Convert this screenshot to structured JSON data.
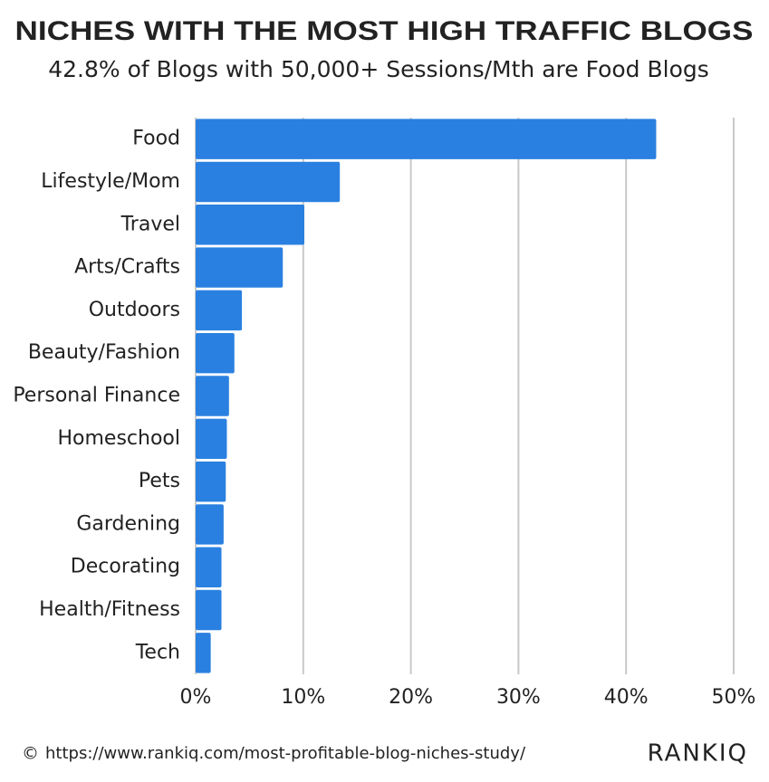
{
  "chart_data": {
    "type": "bar",
    "orientation": "horizontal",
    "title": "NICHES WITH THE MOST HIGH TRAFFIC BLOGS",
    "subtitle": "42.8% of Blogs with 50,000+ Sessions/Mth are Food Blogs",
    "categories": [
      "Food",
      "Lifestyle/Mom",
      "Travel",
      "Arts/Crafts",
      "Outdoors",
      "Beauty/Fashion",
      "Personal Finance",
      "Homeschool",
      "Pets",
      "Gardening",
      "Decorating",
      "Health/Fitness",
      "Tech"
    ],
    "values": [
      42.8,
      13.4,
      10.1,
      8.1,
      4.3,
      3.6,
      3.1,
      2.9,
      2.8,
      2.6,
      2.4,
      2.4,
      1.4
    ],
    "color": "#2a80e0",
    "xlim": [
      0,
      50
    ],
    "xticks": [
      {
        "value": 0,
        "label": "0%"
      },
      {
        "value": 10,
        "label": "10%"
      },
      {
        "value": 20,
        "label": "20%"
      },
      {
        "value": 30,
        "label": "30%"
      },
      {
        "value": 40,
        "label": "40%"
      },
      {
        "value": 50,
        "label": "50%"
      }
    ],
    "grid": true
  },
  "footer": {
    "copyright": "©",
    "source": "https://www.rankiq.com/most-profitable-blog-niches-study/",
    "logo": "RANKIQ"
  }
}
